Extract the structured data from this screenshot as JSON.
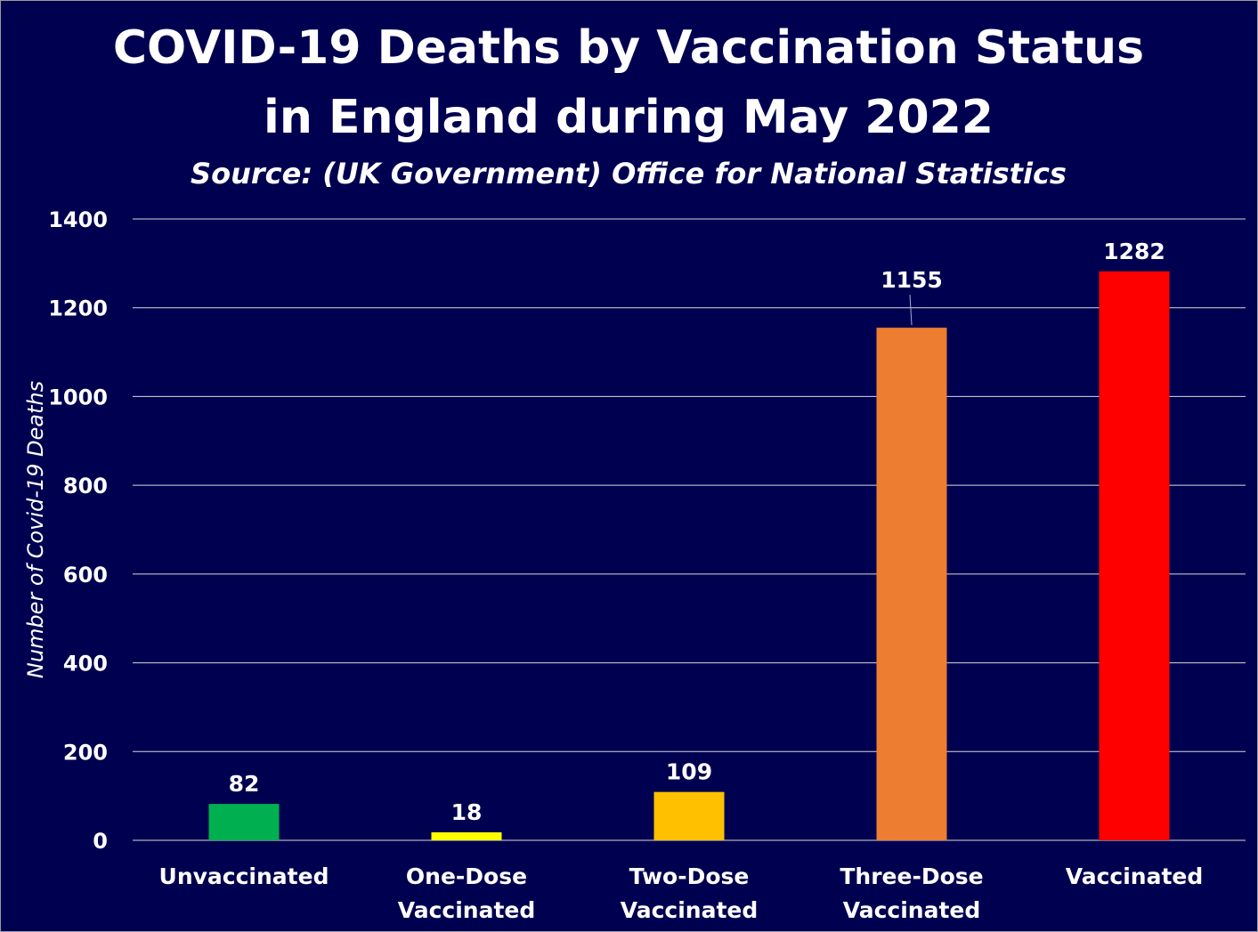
{
  "chart_data": {
    "type": "bar",
    "title_lines": [
      "COVID-19 Deaths by Vaccination Status",
      "in England during May 2022"
    ],
    "subtitle": "Source: (UK Government) Office for National Statistics",
    "xlabel": "",
    "ylabel": "Number of Covid-19 Deaths",
    "ylim": [
      0,
      1400
    ],
    "yticks": [
      0,
      200,
      400,
      600,
      800,
      1000,
      1200,
      1400
    ],
    "grid": true,
    "legend": "none",
    "categories": [
      [
        "Unvaccinated"
      ],
      [
        "One-Dose",
        "Vaccinated"
      ],
      [
        "Two-Dose",
        "Vaccinated"
      ],
      [
        "Three-Dose",
        "Vaccinated"
      ],
      [
        "Vaccinated"
      ]
    ],
    "values": [
      82,
      18,
      109,
      1155,
      1282
    ],
    "bar_colors": [
      "#00b050",
      "#ffff00",
      "#ffc000",
      "#ed7d31",
      "#ff0000"
    ],
    "background_color": "#000050",
    "text_color": "#ffffff"
  }
}
